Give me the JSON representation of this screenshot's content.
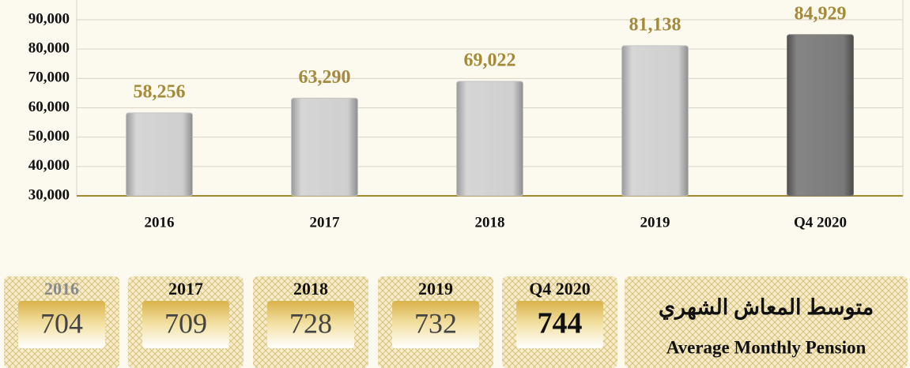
{
  "chart_data": {
    "type": "bar",
    "categories": [
      "2016",
      "2017",
      "2018",
      "2019",
      "Q4 2020"
    ],
    "values": [
      58256,
      63290,
      69022,
      81138,
      84929
    ],
    "value_labels": [
      "58,256",
      "63,290",
      "69,022",
      "81,138",
      "84,929"
    ],
    "colors": [
      "#c4c4c4",
      "#c4c4c4",
      "#c4c4c4",
      "#c4c4c4",
      "#7b7b7b"
    ],
    "ylim": [
      30000,
      90000
    ],
    "yticks": [
      {
        "value": 30000,
        "label": "30,000"
      },
      {
        "value": 40000,
        "label": "40,000"
      },
      {
        "value": 50000,
        "label": "50,000"
      },
      {
        "value": 60000,
        "label": "60,000"
      },
      {
        "value": 70000,
        "label": "70,000"
      },
      {
        "value": 80000,
        "label": "80,000"
      },
      {
        "value": 90000,
        "label": "90,000"
      }
    ],
    "grid": true
  },
  "pension_table": {
    "title_ar": "متوسط المعاش الشهري",
    "title_en": "Average Monthly Pension",
    "years": [
      "2016",
      "2017",
      "2018",
      "2019",
      "Q4 2020"
    ],
    "values": [
      704,
      709,
      728,
      732,
      744
    ]
  }
}
